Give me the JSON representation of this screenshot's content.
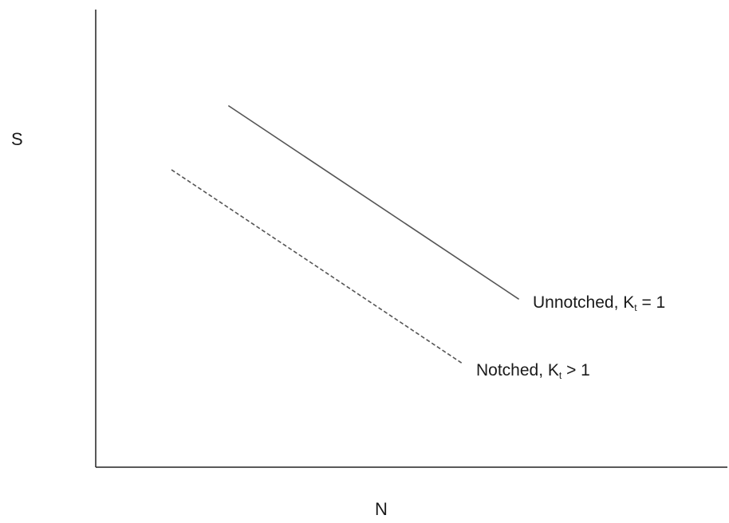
{
  "chart_data": {
    "type": "line",
    "title": "",
    "xlabel": "N",
    "ylabel": "S",
    "xlim": [
      0,
      100
    ],
    "ylim": [
      0,
      100
    ],
    "grid": false,
    "legend": "none",
    "series": [
      {
        "name": "Unnotched, Kt = 1",
        "name_main": "Unnotched, K",
        "name_sub": "t",
        "name_tail": " = 1",
        "style": "solid",
        "color": "#555555",
        "x": [
          21.0,
          67.0
        ],
        "y": [
          79.0,
          36.7
        ]
      },
      {
        "name": "Notched, Kt > 1",
        "name_main": "Notched, K",
        "name_sub": "t",
        "name_tail": " > 1",
        "style": "dashed",
        "color": "#555555",
        "x": [
          12.0,
          58.0
        ],
        "y": [
          65.0,
          22.7
        ]
      }
    ]
  }
}
